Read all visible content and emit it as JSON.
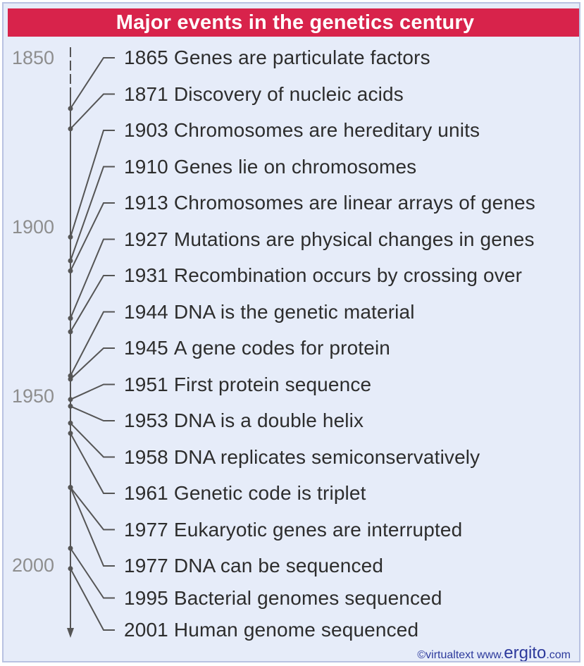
{
  "title": "Major events in the genetics century",
  "axis_labels": [
    "1850",
    "1900",
    "1950",
    "2000"
  ],
  "events": [
    {
      "year": "1865",
      "text": "Genes are particulate factors"
    },
    {
      "year": "1871",
      "text": "Discovery of nucleic acids"
    },
    {
      "year": "1903",
      "text": "Chromosomes are hereditary units"
    },
    {
      "year": "1910",
      "text": "Genes lie on chromosomes"
    },
    {
      "year": "1913",
      "text": "Chromosomes are linear arrays of genes"
    },
    {
      "year": "1927",
      "text": "Mutations are physical changes in genes"
    },
    {
      "year": "1931",
      "text": "Recombination occurs by crossing over"
    },
    {
      "year": "1944",
      "text": "DNA is the genetic material"
    },
    {
      "year": "1945",
      "text": "A gene codes for protein"
    },
    {
      "year": "1951",
      "text": "First protein sequence"
    },
    {
      "year": "1953",
      "text": "DNA is a double helix"
    },
    {
      "year": "1958",
      "text": "DNA replicates semiconservatively"
    },
    {
      "year": "1961",
      "text": "Genetic code is triplet"
    },
    {
      "year": "1977",
      "text": "Eukaryotic genes are interrupted"
    },
    {
      "year": "1977",
      "text": "DNA can be sequenced"
    },
    {
      "year": "1995",
      "text": "Bacterial genomes sequenced"
    },
    {
      "year": "2001",
      "text": "Human genome sequenced"
    }
  ],
  "credit": {
    "prefix": "©virtualtext  www.",
    "brand": "ergito",
    "suffix": ".com"
  },
  "colors": {
    "title_bg": "#d8234b",
    "background": "#e6ecf9",
    "line": "#555555",
    "text": "#2d2d2d",
    "credit": "#2d3a9c"
  }
}
